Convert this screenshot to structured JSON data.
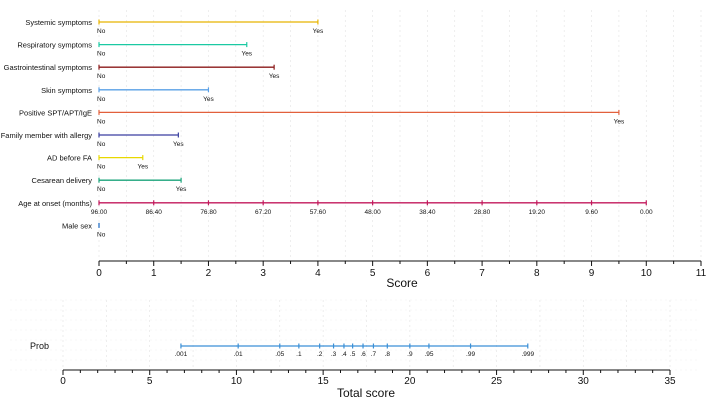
{
  "chart_data": [
    {
      "type": "nomogram",
      "axis": {
        "title": "Score",
        "min": 0,
        "max": 11,
        "major_step": 1,
        "tick_labels": [
          "0",
          "1",
          "2",
          "3",
          "4",
          "5",
          "6",
          "7",
          "8",
          "9",
          "10",
          "11"
        ]
      },
      "variables": [
        {
          "name": "Systemic symptoms",
          "color": "#e8b400",
          "levels": [
            {
              "label": "No",
              "score": 0
            },
            {
              "label": "Yes",
              "score": 4.0
            }
          ]
        },
        {
          "name": "Respiratory symptoms",
          "color": "#1bc9a3",
          "levels": [
            {
              "label": "No",
              "score": 0
            },
            {
              "label": "Yes",
              "score": 2.7
            }
          ]
        },
        {
          "name": "Gastrointestinal symptoms",
          "color": "#8b1a1a",
          "levels": [
            {
              "label": "No",
              "score": 0
            },
            {
              "label": "Yes",
              "score": 3.2
            }
          ]
        },
        {
          "name": "Skin symptoms",
          "color": "#5aa0e6",
          "levels": [
            {
              "label": "No",
              "score": 0
            },
            {
              "label": "Yes",
              "score": 2.0
            }
          ]
        },
        {
          "name": "Positive SPT/APT/IgE",
          "color": "#e2603c",
          "levels": [
            {
              "label": "No",
              "score": 0
            },
            {
              "label": "Yes",
              "score": 9.5
            }
          ]
        },
        {
          "name": "Family member with allergy",
          "color": "#3a3fa0",
          "levels": [
            {
              "label": "No",
              "score": 0
            },
            {
              "label": "Yes",
              "score": 1.45
            }
          ]
        },
        {
          "name": "AD before FA",
          "color": "#e8d800",
          "levels": [
            {
              "label": "No",
              "score": 0
            },
            {
              "label": "Yes",
              "score": 0.8
            }
          ]
        },
        {
          "name": "Cesarean delivery",
          "color": "#1aa37a",
          "levels": [
            {
              "label": "No",
              "score": 0
            },
            {
              "label": "Yes",
              "score": 1.5
            }
          ]
        },
        {
          "name": "Age at onset (months)",
          "color": "#c2185b",
          "continuous": true,
          "levels": [
            {
              "label": "96.00",
              "score": 0
            },
            {
              "label": "86.40",
              "score": 1
            },
            {
              "label": "76.80",
              "score": 2
            },
            {
              "label": "67.20",
              "score": 3
            },
            {
              "label": "57.60",
              "score": 4
            },
            {
              "label": "48.00",
              "score": 5
            },
            {
              "label": "38.40",
              "score": 6
            },
            {
              "label": "28.80",
              "score": 7
            },
            {
              "label": "19.20",
              "score": 8
            },
            {
              "label": "9.60",
              "score": 9
            },
            {
              "label": "0.00",
              "score": 10
            }
          ]
        },
        {
          "name": "Male sex",
          "color": "#1565c0",
          "levels": [
            {
              "label": "No",
              "score": 0
            }
          ]
        }
      ]
    },
    {
      "type": "nomogram",
      "axis": {
        "title": "Total score",
        "min": 0,
        "max": 35,
        "major_step": 5,
        "tick_labels": [
          "0",
          "5",
          "10",
          "15",
          "20",
          "25",
          "30",
          "35"
        ]
      },
      "variables": [
        {
          "name": "Prob",
          "color": "#3a8fd6",
          "levels": [
            {
              "label": ".001",
              "total": 6.8
            },
            {
              "label": ".01",
              "total": 10.1
            },
            {
              "label": ".05",
              "total": 12.5
            },
            {
              "label": ".1",
              "total": 13.6
            },
            {
              "label": ".2",
              "total": 14.8
            },
            {
              "label": ".3",
              "total": 15.6
            },
            {
              "label": ".4",
              "total": 16.2
            },
            {
              "label": ".5",
              "total": 16.7
            },
            {
              "label": ".6",
              "total": 17.3
            },
            {
              "label": ".7",
              "total": 17.9
            },
            {
              "label": ".8",
              "total": 18.7
            },
            {
              "label": ".9",
              "total": 20.0
            },
            {
              "label": ".95",
              "total": 21.1
            },
            {
              "label": ".99",
              "total": 23.5
            },
            {
              "label": ".999",
              "total": 26.8
            }
          ]
        }
      ]
    }
  ]
}
